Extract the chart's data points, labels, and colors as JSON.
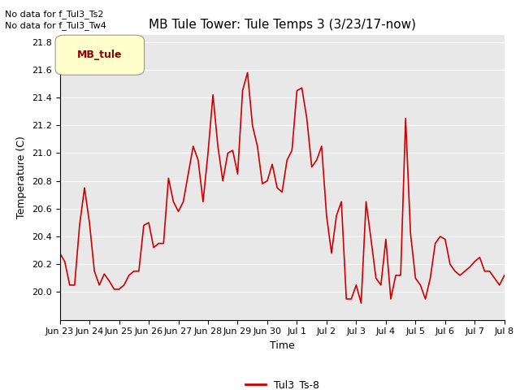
{
  "title": "MB Tule Tower: Tule Temps 3 (3/23/17-now)",
  "xlabel": "Time",
  "ylabel": "Temperature (C)",
  "no_data_text": [
    "No data for f_Tul3_Ts2",
    "No data for f_Tul3_Tw4"
  ],
  "legend_label": "MB_tule",
  "legend_label2": "Tul3_Ts-8",
  "ylim": [
    19.8,
    21.85
  ],
  "yticks": [
    20.0,
    20.2,
    20.4,
    20.6,
    20.8,
    21.0,
    21.2,
    21.4,
    21.6,
    21.8
  ],
  "bg_color": "#E8E8E8",
  "line_color": "#CC0000",
  "x": [
    0,
    0.5,
    1,
    1.5,
    2,
    2.5,
    3,
    3.5,
    4,
    4.5,
    5,
    5.5,
    6,
    6.5,
    7,
    7.5,
    8,
    8.5,
    9,
    9.5,
    10,
    10.5,
    11,
    11.5,
    12,
    12.5,
    13,
    13.5,
    14,
    14.5,
    15,
    15.5,
    16,
    16.5,
    17,
    17.5,
    18,
    18.5,
    19,
    19.5,
    20,
    20.5,
    21,
    21.5,
    22,
    22.5,
    23,
    23.5,
    24,
    24.5,
    25,
    25.5,
    26,
    26.5,
    27,
    27.5,
    28,
    28.5,
    29,
    29.5,
    30,
    30.5,
    31,
    31.5,
    32,
    32.5,
    33,
    33.5,
    34,
    34.5,
    35,
    35.5,
    36,
    36.5,
    37,
    37.5,
    38,
    38.5,
    39,
    39.5,
    40,
    40.5,
    41,
    41.5,
    42,
    42.5,
    43,
    43.5,
    44,
    44.5,
    45
  ],
  "y": [
    20.28,
    20.22,
    20.05,
    20.05,
    20.48,
    20.75,
    20.5,
    20.15,
    20.05,
    20.13,
    20.08,
    20.02,
    20.02,
    20.05,
    20.12,
    20.15,
    20.15,
    20.48,
    20.5,
    20.32,
    20.35,
    20.35,
    20.82,
    20.65,
    20.58,
    20.65,
    20.85,
    21.05,
    20.95,
    20.65,
    21.0,
    21.42,
    21.05,
    20.8,
    21.0,
    21.02,
    20.85,
    21.45,
    21.58,
    21.2,
    21.05,
    20.78,
    20.8,
    20.92,
    20.75,
    20.72,
    20.95,
    21.02,
    21.45,
    21.47,
    21.25,
    20.9,
    20.95,
    21.05,
    20.55,
    20.28,
    20.55,
    20.65,
    19.95,
    19.95,
    20.05,
    19.92,
    20.65,
    20.38,
    20.1,
    20.05,
    20.38,
    19.95,
    20.12,
    20.12,
    21.25,
    20.42,
    20.1,
    20.05,
    19.95,
    20.1,
    20.35,
    20.4,
    20.38,
    20.2,
    20.15,
    20.12,
    20.15,
    20.18,
    20.22,
    20.25,
    20.15,
    20.15,
    20.1,
    20.05,
    20.12
  ],
  "xtick_labels": [
    "Jun 23",
    "Jun 24",
    "Jun 25",
    "Jun 26",
    "Jun 27",
    "Jun 28",
    "Jun 29",
    "Jun 30",
    "Jul 1",
    "Jul 2",
    "Jul 3",
    "Jul 4",
    "Jul 5",
    "Jul 6",
    "Jul 7",
    "Jul 8"
  ],
  "title_fontsize": 11,
  "axis_label_fontsize": 9,
  "tick_fontsize": 8
}
